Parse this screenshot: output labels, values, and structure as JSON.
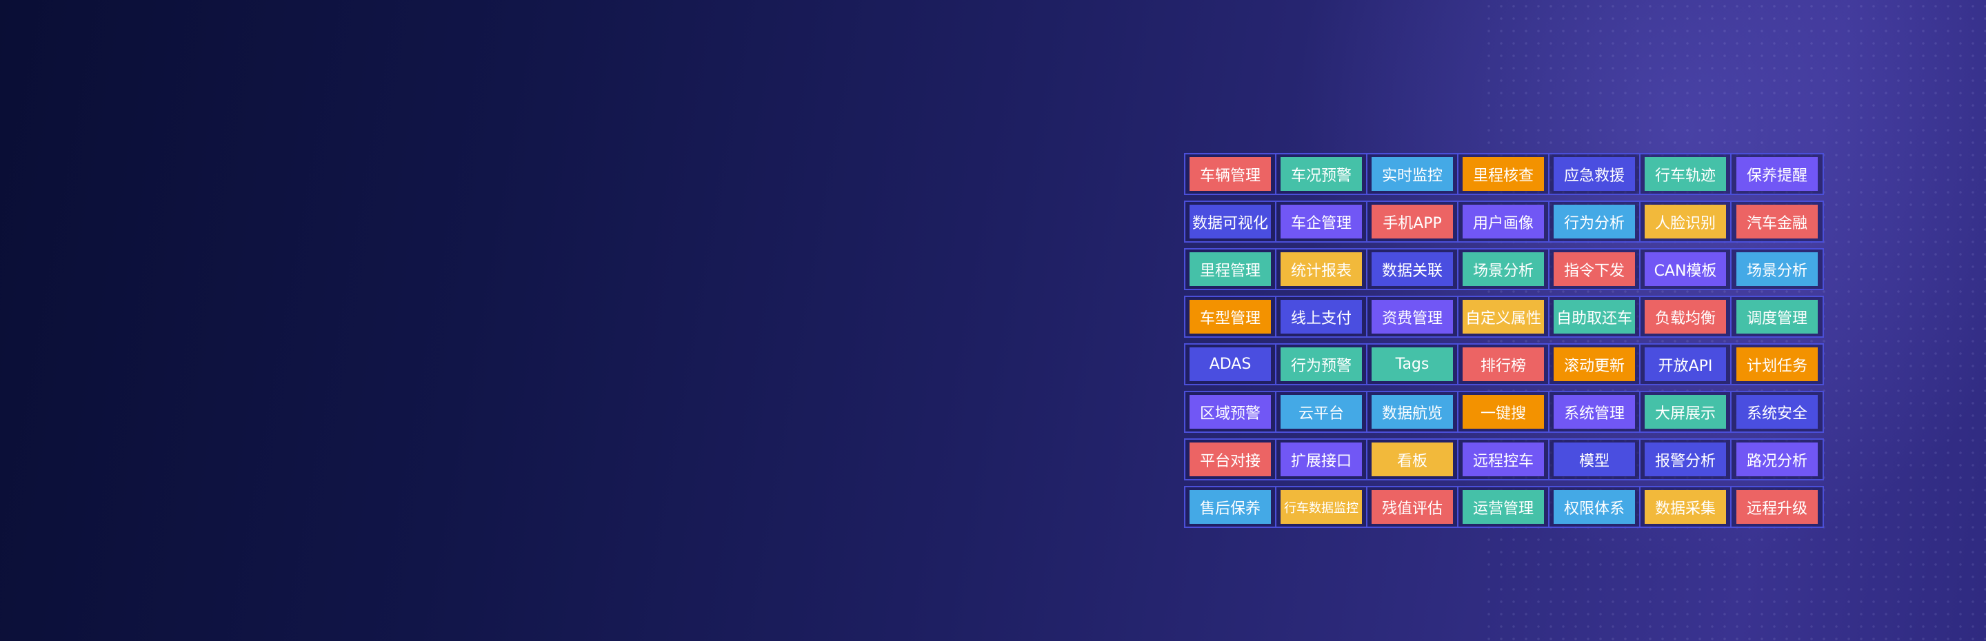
{
  "colors": {
    "red": "#ec6464",
    "teal": "#45c1a8",
    "blue": "#44a9e6",
    "orange": "#f39200",
    "indigo": "#4a4ee0",
    "purple": "#7157f5",
    "yellow": "#f2b93b"
  },
  "rows": [
    [
      {
        "label": "车辆管理",
        "color": "red"
      },
      {
        "label": "车况预警",
        "color": "teal"
      },
      {
        "label": "实时监控",
        "color": "blue"
      },
      {
        "label": "里程核查",
        "color": "orange"
      },
      {
        "label": "应急救援",
        "color": "indigo"
      },
      {
        "label": "行车轨迹",
        "color": "teal"
      },
      {
        "label": "保养提醒",
        "color": "purple"
      }
    ],
    [
      {
        "label": "数据可视化",
        "color": "indigo"
      },
      {
        "label": "车企管理",
        "color": "purple"
      },
      {
        "label": "手机APP",
        "color": "red"
      },
      {
        "label": "用户画像",
        "color": "purple"
      },
      {
        "label": "行为分析",
        "color": "blue"
      },
      {
        "label": "人脸识别",
        "color": "yellow"
      },
      {
        "label": "汽车金融",
        "color": "red"
      }
    ],
    [
      {
        "label": "里程管理",
        "color": "teal"
      },
      {
        "label": "统计报表",
        "color": "yellow"
      },
      {
        "label": "数据关联",
        "color": "indigo"
      },
      {
        "label": "场景分析",
        "color": "teal"
      },
      {
        "label": "指令下发",
        "color": "red"
      },
      {
        "label": "CAN模板",
        "color": "purple"
      },
      {
        "label": "场景分析",
        "color": "blue"
      }
    ],
    [
      {
        "label": "车型管理",
        "color": "orange"
      },
      {
        "label": "线上支付",
        "color": "indigo"
      },
      {
        "label": "资费管理",
        "color": "purple"
      },
      {
        "label": "自定义属性",
        "color": "yellow"
      },
      {
        "label": "自助取还车",
        "color": "teal"
      },
      {
        "label": "负载均衡",
        "color": "red"
      },
      {
        "label": "调度管理",
        "color": "teal"
      }
    ],
    [
      {
        "label": "ADAS",
        "color": "indigo"
      },
      {
        "label": "行为预警",
        "color": "teal"
      },
      {
        "label": "Tags",
        "color": "teal"
      },
      {
        "label": "排行榜",
        "color": "red"
      },
      {
        "label": "滚动更新",
        "color": "orange"
      },
      {
        "label": "开放API",
        "color": "indigo"
      },
      {
        "label": "计划任务",
        "color": "orange"
      }
    ],
    [
      {
        "label": "区域预警",
        "color": "purple"
      },
      {
        "label": "云平台",
        "color": "blue"
      },
      {
        "label": "数据航览",
        "color": "blue"
      },
      {
        "label": "一键搜",
        "color": "orange"
      },
      {
        "label": "系统管理",
        "color": "purple"
      },
      {
        "label": "大屏展示",
        "color": "teal"
      },
      {
        "label": "系统安全",
        "color": "indigo"
      }
    ],
    [
      {
        "label": "平台对接",
        "color": "red"
      },
      {
        "label": "扩展接口",
        "color": "purple"
      },
      {
        "label": "看板",
        "color": "yellow"
      },
      {
        "label": "远程控车",
        "color": "purple"
      },
      {
        "label": "模型",
        "color": "indigo"
      },
      {
        "label": "报警分析",
        "color": "indigo"
      },
      {
        "label": "路况分析",
        "color": "purple"
      }
    ],
    [
      {
        "label": "售后保养",
        "color": "blue"
      },
      {
        "label": "行车数据监控",
        "color": "yellow"
      },
      {
        "label": "残值评估",
        "color": "red"
      },
      {
        "label": "运营管理",
        "color": "teal"
      },
      {
        "label": "权限体系",
        "color": "blue"
      },
      {
        "label": "数据采集",
        "color": "yellow"
      },
      {
        "label": "远程升级",
        "color": "red"
      }
    ]
  ]
}
